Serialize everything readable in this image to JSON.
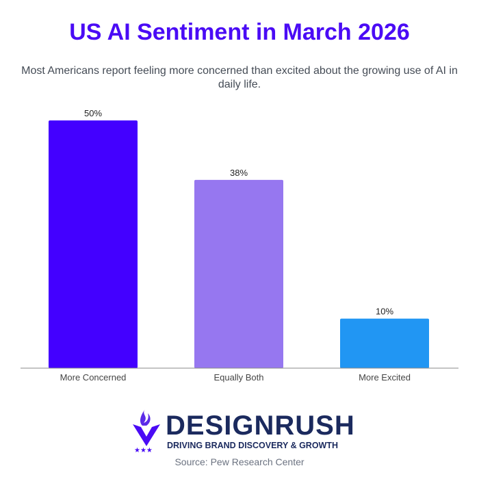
{
  "chart_data": {
    "type": "bar",
    "title": "US AI Sentiment in March 2026",
    "subtitle": "Most Americans report feeling more concerned than excited about the growing use of AI in daily life.",
    "categories": [
      "More Concerned",
      "Equally Both",
      "More Excited"
    ],
    "values": [
      50,
      38,
      10
    ],
    "data_labels": [
      "50%",
      "38%",
      "10%"
    ],
    "colors": [
      "#4300ff",
      "#9677f0",
      "#2196f3"
    ],
    "ylim": [
      0,
      50
    ],
    "grid": false,
    "legend": "none",
    "xlabel": "",
    "ylabel": ""
  },
  "branding": {
    "logo_name": "DESIGNRUSH",
    "tagline": "DRIVING BRAND DISCOVERY & GROWTH"
  },
  "source": "Source: Pew Research Center"
}
